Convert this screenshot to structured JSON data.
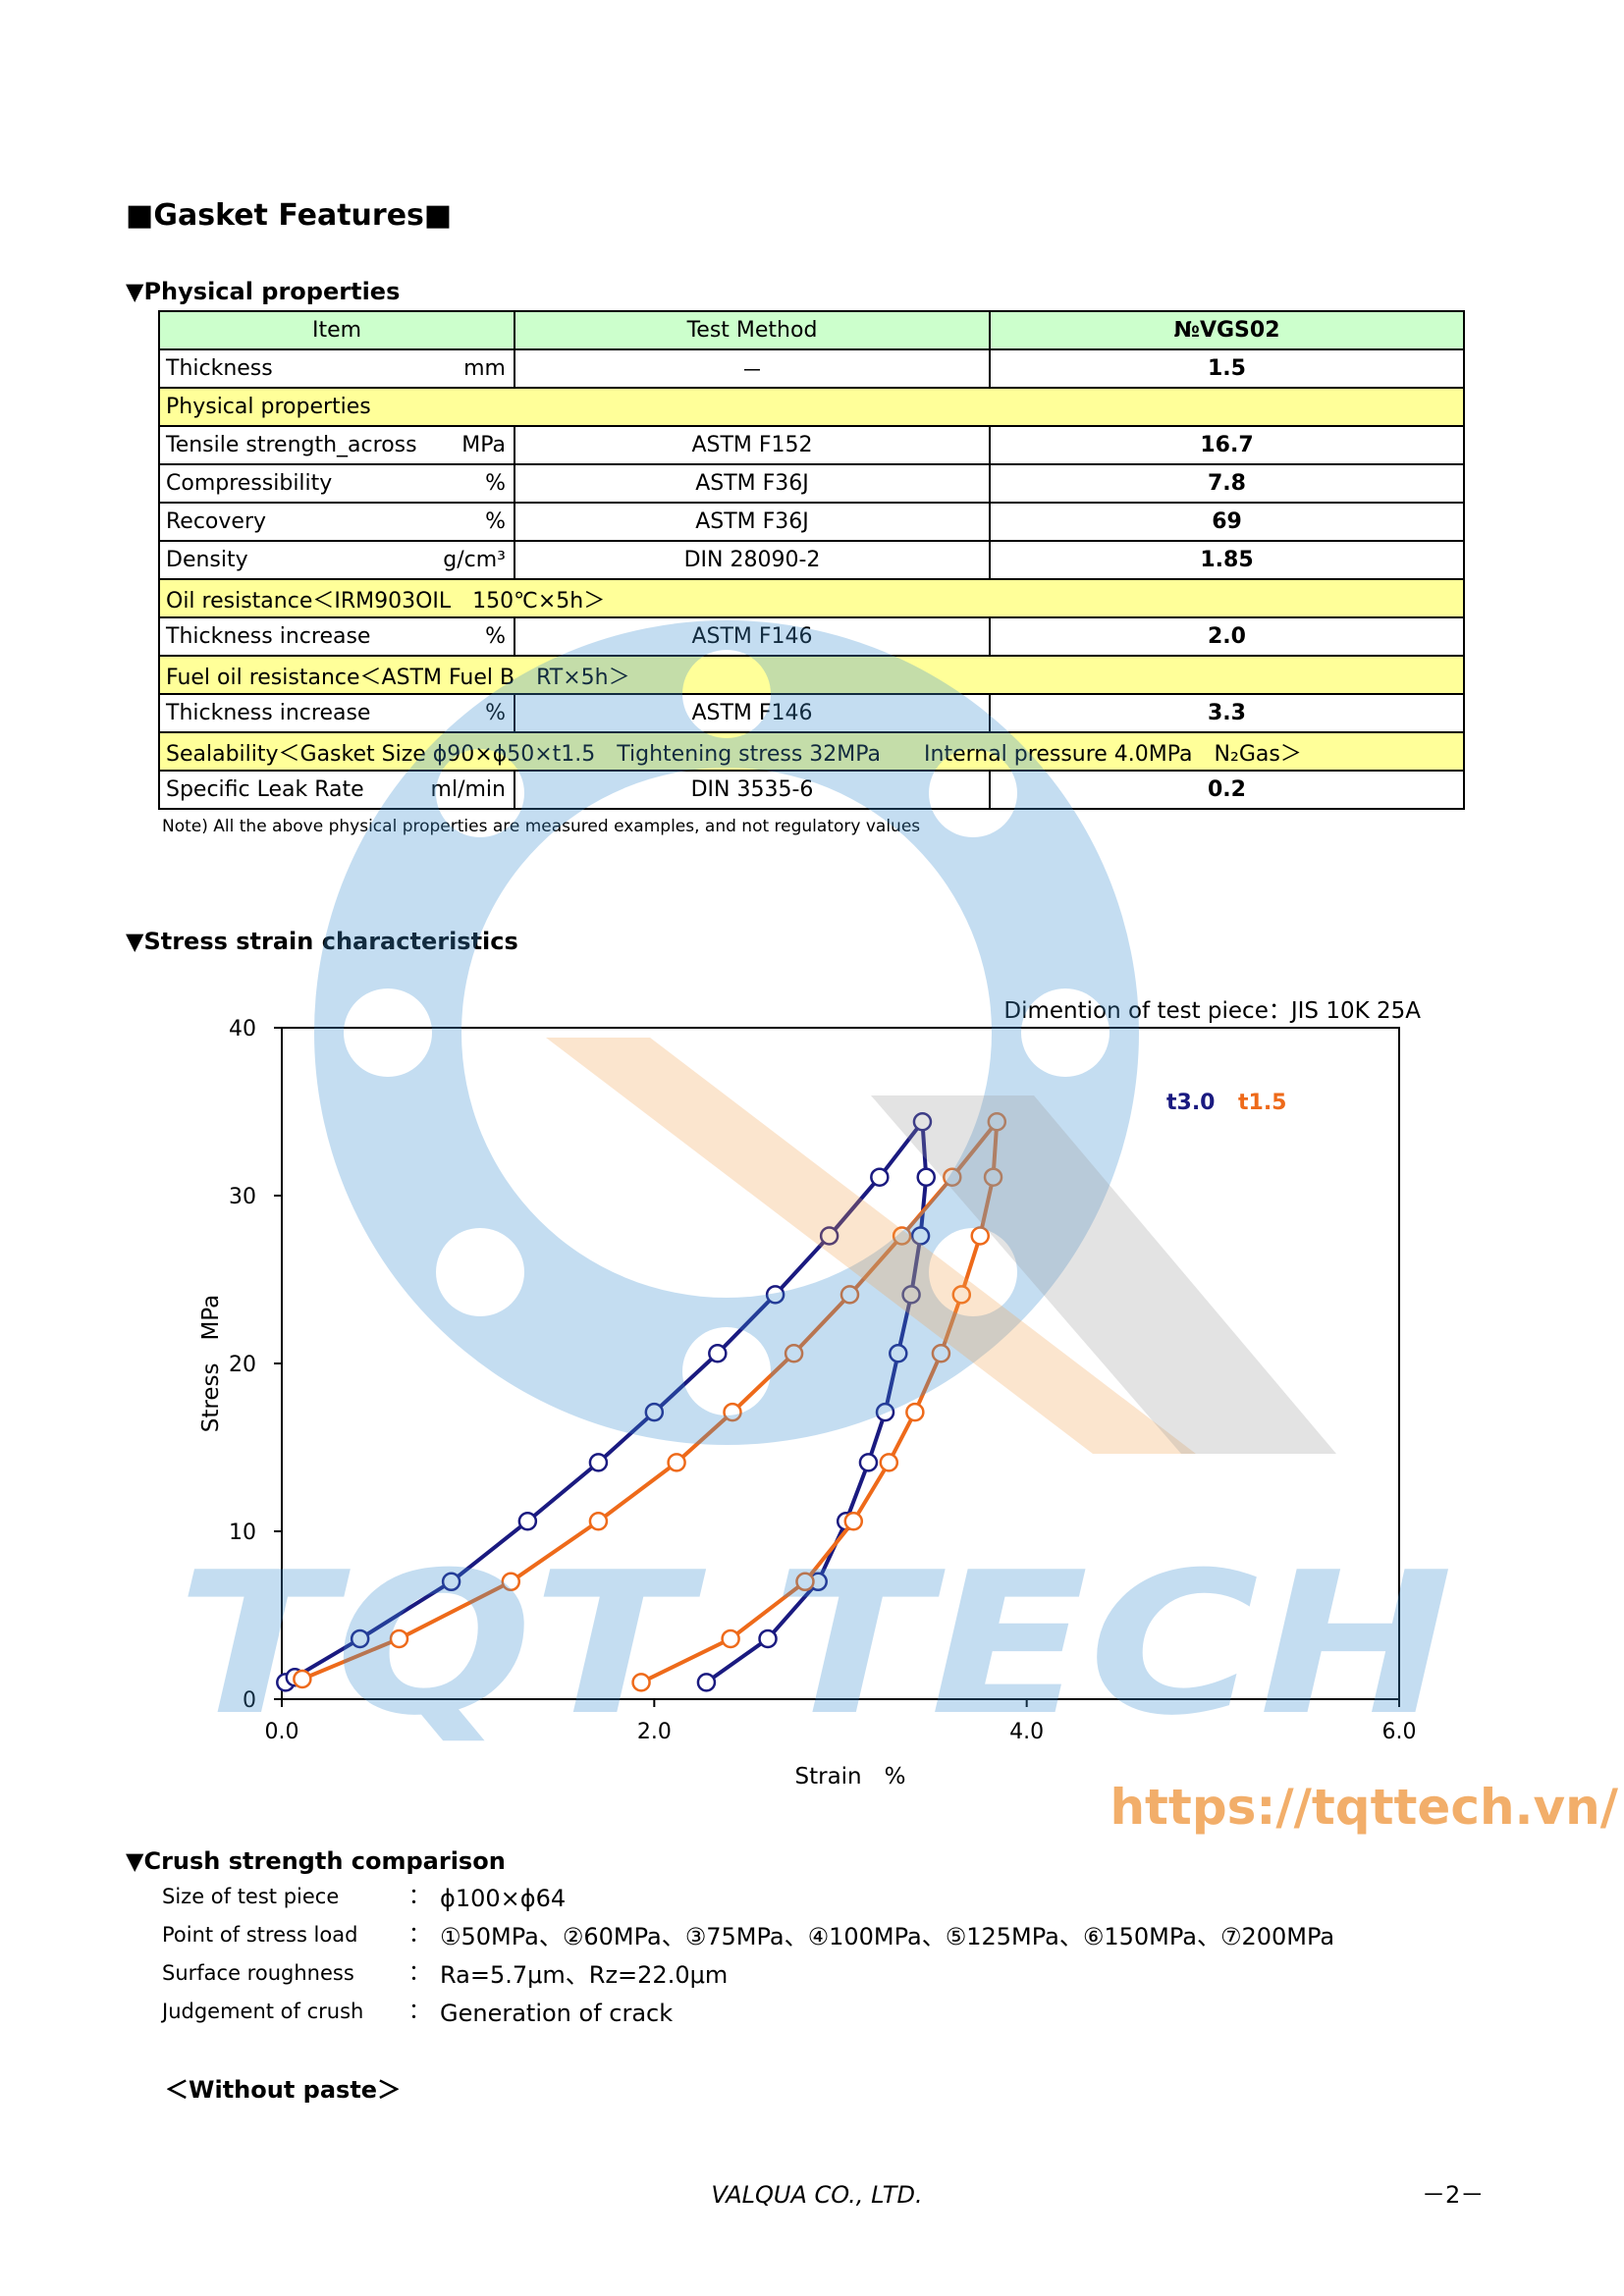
{
  "header": {
    "title": "■Gasket Features■"
  },
  "physical": {
    "heading": "▼Physical properties",
    "table": {
      "columns": [
        "Item",
        "Test Method",
        "№VGS02"
      ],
      "rows": [
        {
          "item": "Thickness",
          "unit": "mm",
          "method": "－",
          "value": "1.5"
        },
        {
          "section": "Physical properties"
        },
        {
          "item": "Tensile strength_across",
          "unit": "MPa",
          "method": "ASTM F152",
          "value": "16.7"
        },
        {
          "item": "Compressibility",
          "unit": "%",
          "method": "ASTM F36J",
          "value": "7.8"
        },
        {
          "item": "Recovery",
          "unit": "%",
          "method": "ASTM F36J",
          "value": "69"
        },
        {
          "item": "Density",
          "unit": "g/cm³",
          "method": "DIN 28090-2",
          "value": "1.85"
        },
        {
          "section": "Oil resistance＜IRM903OIL　150℃×5h＞"
        },
        {
          "item": "Thickness increase",
          "unit": "%",
          "method": "ASTM F146",
          "value": "2.0"
        },
        {
          "section": "Fuel oil resistance＜ASTM Fuel B　RT×5h＞"
        },
        {
          "item": "Thickness increase",
          "unit": "%",
          "method": "ASTM F146",
          "value": "3.3"
        },
        {
          "section": "Sealability＜Gasket Size ϕ90×ϕ50×t1.5　Tightening stress 32MPa　　Internal pressure 4.0MPa　N₂Gas＞"
        },
        {
          "item": "Specific Leak Rate",
          "unit": "ml/min",
          "method": "DIN 3535-6",
          "value": "0.2"
        }
      ]
    },
    "note": "Note) All the above physical properties are measured examples, and not regulatory values"
  },
  "stress_strain": {
    "heading": "▼Stress strain characteristics"
  },
  "chart_data": {
    "type": "line",
    "annotation": "Dimention of test piece：JIS 10K 25A",
    "x_label": "Strain　%",
    "y_label": "Stress　MPa",
    "xlim": [
      0,
      6
    ],
    "ylim": [
      0,
      40
    ],
    "xticks": [
      {
        "value": 0,
        "label": "0.0"
      },
      {
        "value": 2,
        "label": "2.0"
      },
      {
        "value": 4,
        "label": "4.0"
      },
      {
        "value": 6,
        "label": "6.0"
      }
    ],
    "yticks": [
      0,
      10,
      20,
      30,
      40
    ],
    "series": [
      {
        "name": "t3.0",
        "color": "#1a1a80",
        "x": [
          0.02,
          0.07,
          0.42,
          0.91,
          1.32,
          1.7,
          2.0,
          2.34,
          2.65,
          2.94,
          3.21,
          3.44,
          3.46,
          3.43,
          3.38,
          3.31,
          3.24,
          3.15,
          3.03,
          2.88,
          2.61,
          2.28
        ],
        "values": [
          1.0,
          1.3,
          3.6,
          7.0,
          10.6,
          14.1,
          17.1,
          20.6,
          24.1,
          27.6,
          31.1,
          34.4,
          31.1,
          27.6,
          24.1,
          20.6,
          17.1,
          14.1,
          10.6,
          7.0,
          3.6,
          1.0
        ]
      },
      {
        "name": "t1.5",
        "color": "#ee6a1a",
        "x": [
          0.11,
          0.63,
          1.23,
          1.7,
          2.12,
          2.42,
          2.75,
          3.05,
          3.33,
          3.6,
          3.84,
          3.82,
          3.75,
          3.65,
          3.54,
          3.4,
          3.26,
          3.07,
          2.81,
          2.41,
          1.93
        ],
        "values": [
          1.2,
          3.6,
          7.0,
          10.6,
          14.1,
          17.1,
          20.6,
          24.1,
          27.6,
          31.1,
          34.4,
          31.1,
          27.6,
          24.1,
          20.6,
          17.1,
          14.1,
          10.6,
          7.0,
          3.6,
          1.0
        ]
      }
    ]
  },
  "crush": {
    "heading": "▼Crush strength comparison",
    "rows": [
      {
        "label": "Size of test piece",
        "sep": "：",
        "value": "ϕ100×ϕ64"
      },
      {
        "label": "Point of stress load",
        "sep": "：",
        "value": "①50MPa、②60MPa、③75MPa、④100MPa、⑤125MPa、⑥150MPa、⑦200MPa"
      },
      {
        "label": "Surface roughness",
        "sep": "：",
        "value": "Ra=5.7μm、Rz=22.0μm"
      },
      {
        "label": "Judgement of crush",
        "sep": "：",
        "value": "Generation of crack"
      }
    ],
    "subheading": "＜Without paste＞"
  },
  "footer": {
    "company": "VALQUA CO., LTD.",
    "page": "－2－"
  },
  "watermark": {
    "logo": "TQT TECH",
    "url": "https://tqttech.vn/"
  }
}
